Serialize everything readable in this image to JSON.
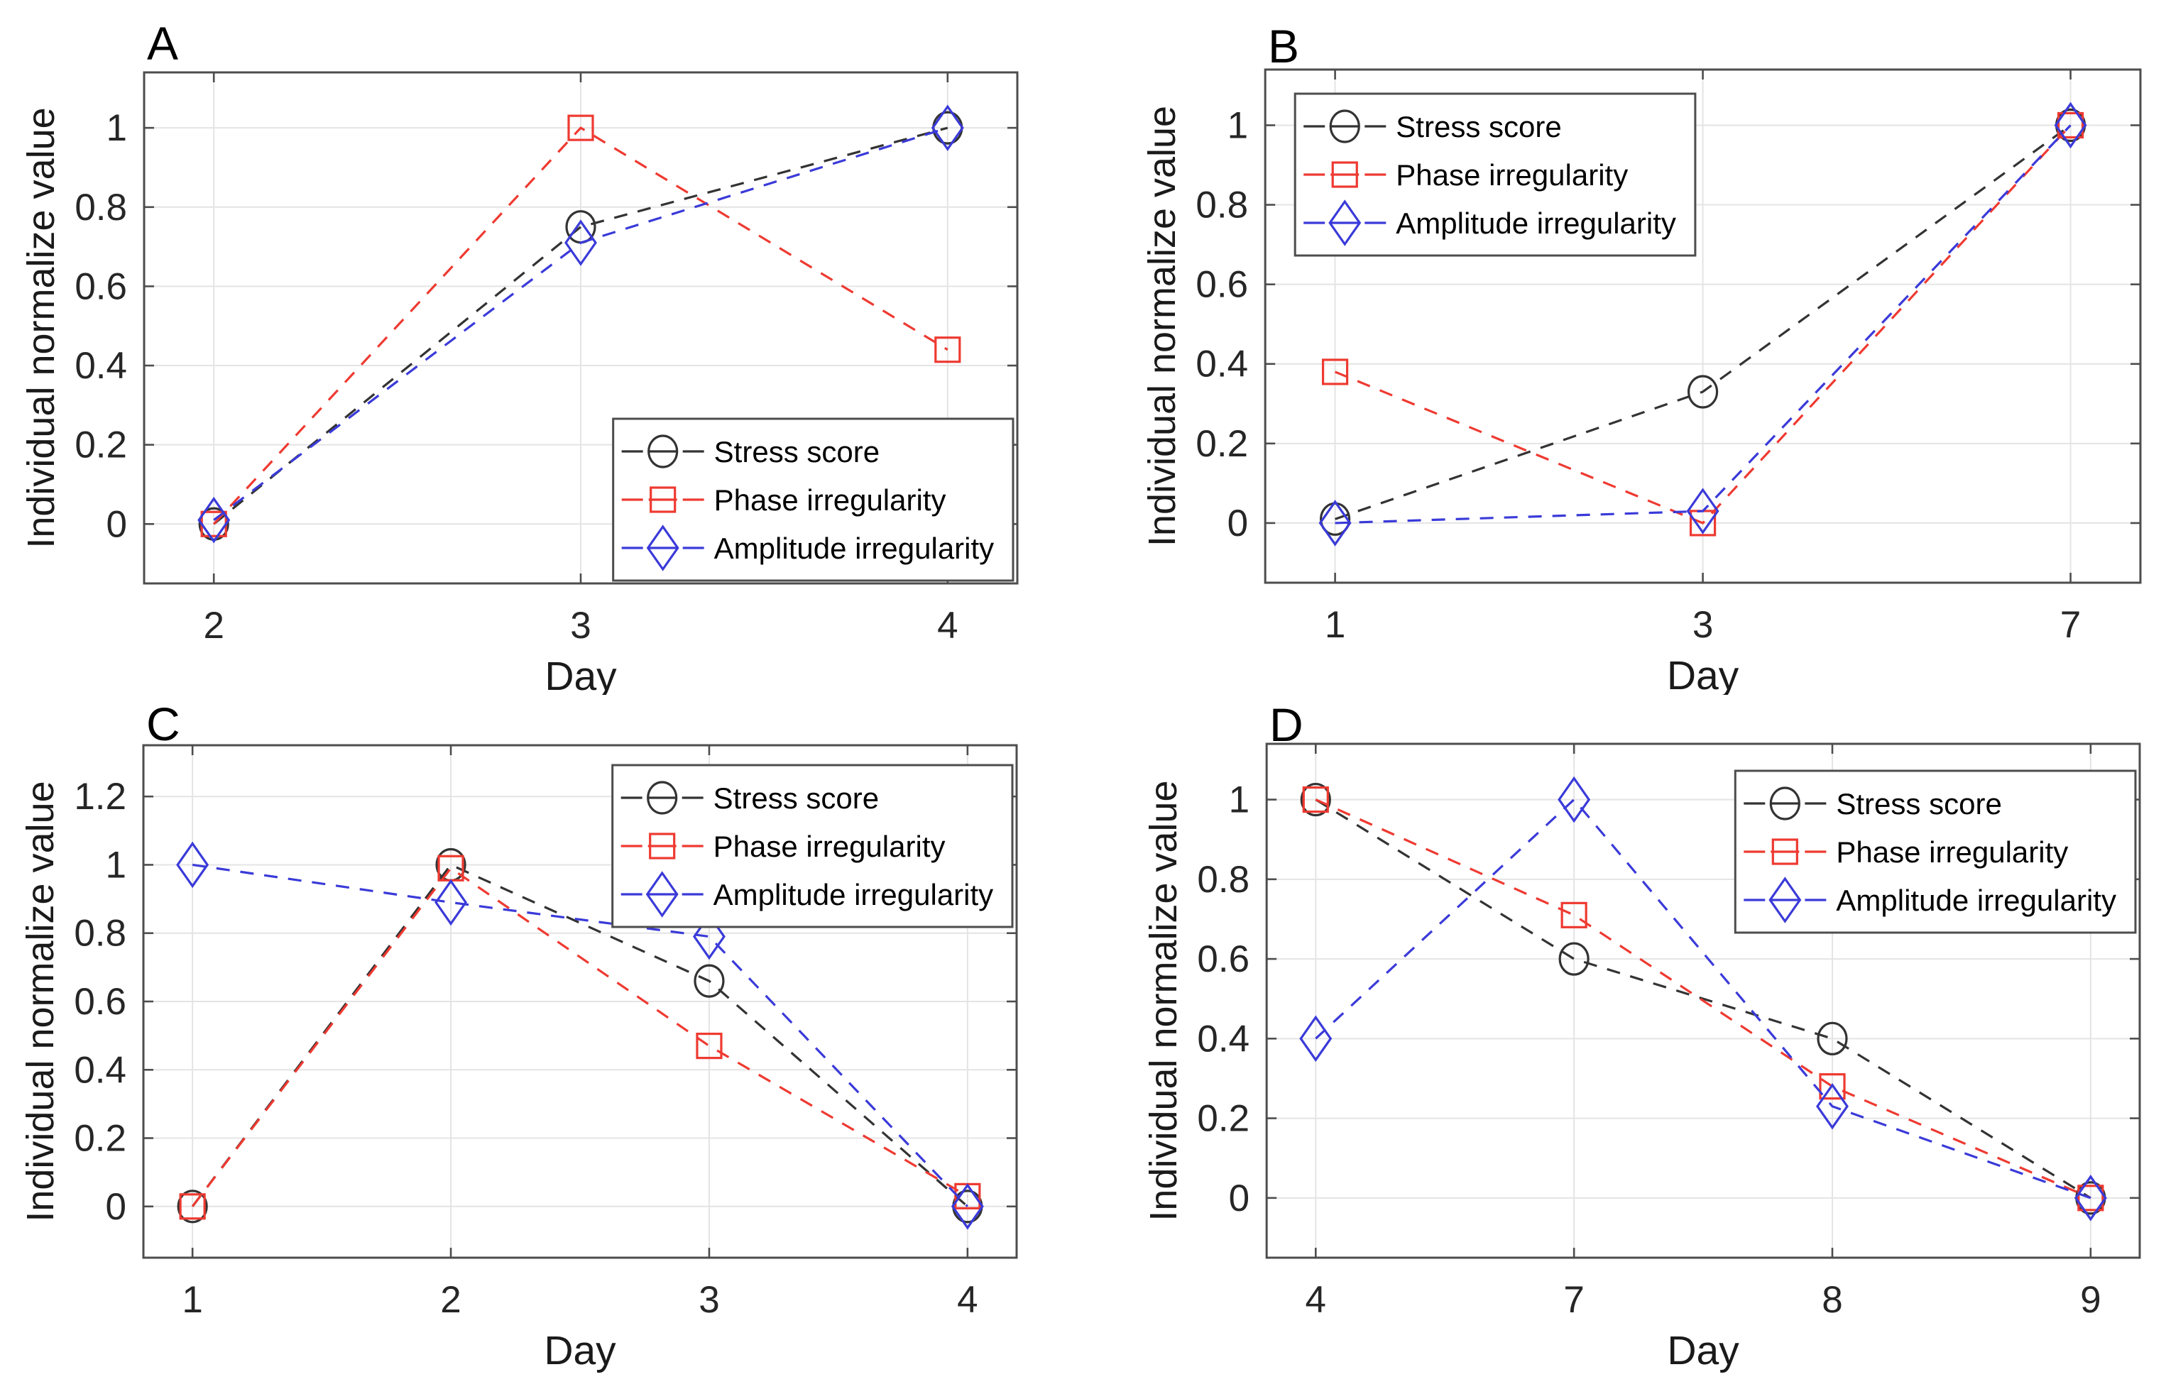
{
  "figure": {
    "background": "#ffffff",
    "description": "Four line plots (A-D) of individually normalized stress and rhythm-irregularity metrics versus day"
  },
  "style": {
    "grid_color": "#e4e4e4",
    "axis_color": "#4d4d4d",
    "tick_label_color": "#262626",
    "label_color": "#1a1a1a",
    "legend_border_color": "#4d4d4d",
    "legend_background": "#ffffff",
    "legend_text_color": "#000000",
    "series_colors": {
      "stress": "#333333",
      "phase": "#ee3a31",
      "amplitude": "#3a3ad9"
    }
  },
  "chart_data": [
    {
      "panel_label": "A",
      "type": "line",
      "line_style": "dashed",
      "grid": true,
      "xlabel": "Day",
      "ylabel": "Individual normalize value",
      "categories": [
        "2",
        "3",
        "4"
      ],
      "yticks": [
        0,
        0.2,
        0.4,
        0.6,
        0.8,
        1
      ],
      "ylim": [
        -0.15,
        1.14
      ],
      "legend_position": "bottom-right",
      "series": [
        {
          "name": "Stress score",
          "marker": "circle",
          "color": "#333333",
          "values": [
            0,
            0.75,
            1
          ]
        },
        {
          "name": "Phase irregularity",
          "marker": "square",
          "color": "#ee3a31",
          "values": [
            0,
            1,
            0.44
          ]
        },
        {
          "name": "Amplitude irregularity",
          "marker": "diamond",
          "color": "#3a3ad9",
          "values": [
            0.01,
            0.71,
            1
          ]
        }
      ]
    },
    {
      "panel_label": "B",
      "type": "line",
      "line_style": "dashed",
      "grid": true,
      "xlabel": "Day",
      "ylabel": "Individual normalize value",
      "categories": [
        "1",
        "3",
        "7"
      ],
      "yticks": [
        0,
        0.2,
        0.4,
        0.6,
        0.8,
        1
      ],
      "ylim": [
        -0.15,
        1.14
      ],
      "legend_position": "top-left",
      "series": [
        {
          "name": "Stress score",
          "marker": "circle",
          "color": "#333333",
          "values": [
            0.01,
            0.33,
            1
          ]
        },
        {
          "name": "Phase irregularity",
          "marker": "square",
          "color": "#ee3a31",
          "values": [
            0.38,
            0,
            1
          ]
        },
        {
          "name": "Amplitude irregularity",
          "marker": "diamond",
          "color": "#3a3ad9",
          "values": [
            0,
            0.03,
            1
          ]
        }
      ]
    },
    {
      "panel_label": "C",
      "type": "line",
      "line_style": "dashed",
      "grid": true,
      "xlabel": "Day",
      "ylabel": "Individual normalize value",
      "categories": [
        "1",
        "2",
        "3",
        "4"
      ],
      "yticks": [
        0,
        0.2,
        0.4,
        0.6,
        0.8,
        1,
        1.2
      ],
      "ylim": [
        -0.15,
        1.35
      ],
      "legend_position": "top-right",
      "series": [
        {
          "name": "Stress score",
          "marker": "circle",
          "color": "#333333",
          "values": [
            0,
            1,
            0.66,
            0
          ]
        },
        {
          "name": "Phase irregularity",
          "marker": "square",
          "color": "#ee3a31",
          "values": [
            0,
            0.99,
            0.47,
            0.03
          ]
        },
        {
          "name": "Amplitude irregularity",
          "marker": "diamond",
          "color": "#3a3ad9",
          "values": [
            1,
            0.89,
            0.79,
            0
          ]
        }
      ]
    },
    {
      "panel_label": "D",
      "type": "line",
      "line_style": "dashed",
      "grid": true,
      "xlabel": "Day",
      "ylabel": "Individual normalize value",
      "categories": [
        "4",
        "7",
        "8",
        "9"
      ],
      "yticks": [
        0,
        0.2,
        0.4,
        0.6,
        0.8,
        1
      ],
      "ylim": [
        -0.15,
        1.14
      ],
      "legend_position": "top-right",
      "series": [
        {
          "name": "Stress score",
          "marker": "circle",
          "color": "#333333",
          "values": [
            1,
            0.6,
            0.4,
            0
          ]
        },
        {
          "name": "Phase irregularity",
          "marker": "square",
          "color": "#ee3a31",
          "values": [
            1,
            0.71,
            0.28,
            0
          ]
        },
        {
          "name": "Amplitude irregularity",
          "marker": "diamond",
          "color": "#3a3ad9",
          "values": [
            0.4,
            1,
            0.23,
            0
          ]
        }
      ]
    }
  ]
}
